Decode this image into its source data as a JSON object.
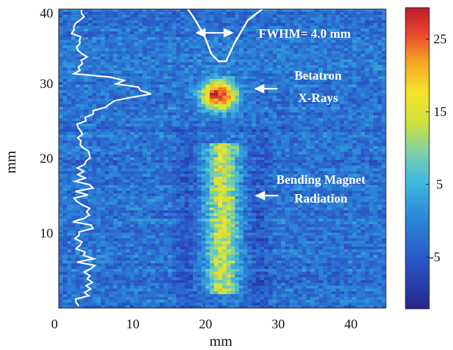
{
  "chart_data": {
    "type": "heatmap",
    "title": "",
    "xlabel": "mm",
    "ylabel": "mm",
    "xlim": [
      0,
      45
    ],
    "ylim": [
      0,
      40
    ],
    "x_ticks": [
      "0",
      "10",
      "20",
      "30",
      "40"
    ],
    "y_ticks": [
      "10",
      "20",
      "30",
      "40"
    ],
    "colorbar": {
      "range": [
        -12,
        29
      ],
      "ticks": [
        "25",
        "15",
        "5",
        "-5"
      ],
      "colormap": "jet"
    },
    "annotations": [
      {
        "text": "FWHM= 4.0 mm"
      },
      {
        "text": "Betatron"
      },
      {
        "text": "X-Rays"
      },
      {
        "text": "Bending Magnet"
      },
      {
        "text": "Radiation"
      }
    ],
    "features": {
      "betatron_spot": {
        "x": 22,
        "y": 28.5,
        "peak": 29
      },
      "bending_magnet_stripe": {
        "x_center": 22.5,
        "x_halfwidth": 2.2,
        "y_range": [
          2,
          22
        ],
        "level": 15
      },
      "background_level": -2
    },
    "top_lineout": {
      "description_free": true,
      "x_range": [
        17,
        30
      ],
      "min_x": 22,
      "min_y": 33
    },
    "left_lineout": {
      "x_range": [
        2,
        12
      ],
      "peak_x": 12,
      "peak_y": 29
    }
  },
  "colors": {
    "background": "#ffffff",
    "lineout": "#ffffff",
    "axis": "#111111"
  }
}
